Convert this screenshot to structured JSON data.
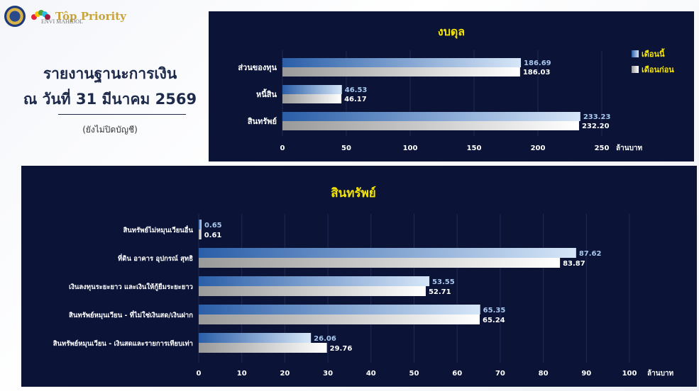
{
  "header": {
    "brand_text": "Tôp Priority",
    "brand_small": "ENVI MAHIDOL"
  },
  "report": {
    "title_line1": "รายงานฐานะการเงิน",
    "title_line2": "ณ วันที่ 31 มีนาคม 2569",
    "note": "(ยังไม่ปิดบัญชี)"
  },
  "colors": {
    "panel_bg": "#0b1437",
    "title_yellow": "#f5e400",
    "current_bar": "#4a86c8",
    "previous_bar": "#ffffff"
  },
  "chart_data": [
    {
      "type": "bar",
      "orientation": "horizontal",
      "title": "งบดุล",
      "categories": [
        "ส่วนของทุน",
        "หนี้สิน",
        "สินทรัพย์"
      ],
      "series": [
        {
          "name": "เดือนนี้",
          "values": [
            186.69,
            46.53,
            233.23
          ]
        },
        {
          "name": "เดือนก่อน",
          "values": [
            186.03,
            46.17,
            232.2
          ]
        }
      ],
      "value_labels": [
        [
          "186.69",
          "46.53",
          "233.23"
        ],
        [
          "186.03",
          "46.17",
          "232.20"
        ]
      ],
      "xticks": [
        "0",
        "50",
        "100",
        "150",
        "200",
        "250"
      ],
      "xlabel": "ล้านบาท",
      "xlim": [
        0,
        250
      ],
      "legend": "right",
      "grid": true
    },
    {
      "type": "bar",
      "orientation": "horizontal",
      "title": "สินทรัพย์",
      "categories": [
        "สินทรัพย์ไม่หมุนเวียนอื่น",
        "ที่ดิน อาคาร อุปกรณ์ สุทธิ",
        "เงินลงทุนระยะยาว และเงินให้กู้ยืมระยะยาว",
        "สินทรัพย์หมุนเวียน - ที่ไม่ใช่เงินสด/เงินฝาก",
        "สินทรัพย์หมุนเวียน - เงินสดและรายการเทียบเท่า"
      ],
      "series": [
        {
          "name": "เดือนนี้",
          "values": [
            0.65,
            87.62,
            53.55,
            65.35,
            26.06
          ]
        },
        {
          "name": "เดือนก่อน",
          "values": [
            0.61,
            83.87,
            52.71,
            65.24,
            29.76
          ]
        }
      ],
      "value_labels": [
        [
          "0.65",
          "87.62",
          "53.55",
          "65.35",
          "26.06"
        ],
        [
          "0.61",
          "83.87",
          "52.71",
          "65.24",
          "29.76"
        ]
      ],
      "xticks": [
        "0",
        "10",
        "20",
        "30",
        "40",
        "50",
        "60",
        "70",
        "80",
        "90",
        "100"
      ],
      "xlabel": "ล้านบาท",
      "xlim": [
        0,
        100
      ],
      "grid": true
    }
  ]
}
